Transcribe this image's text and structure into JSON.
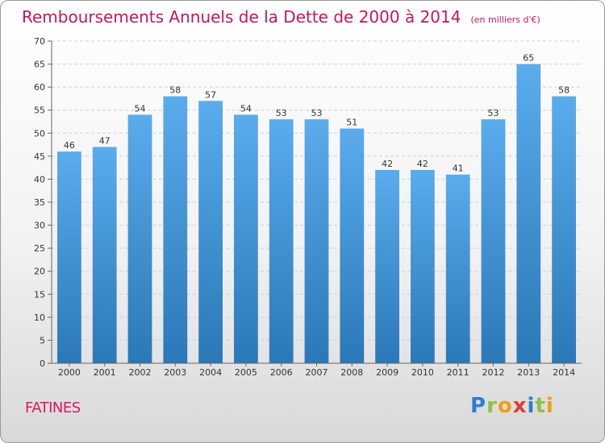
{
  "title": "Remboursements Annuels de la Dette de 2000 à 2014",
  "unit": "(en milliers d'€)",
  "place": "FATINES",
  "logo": {
    "letters": [
      {
        "ch": "P",
        "color": "#2e7dd1"
      },
      {
        "ch": "r",
        "color": "#8bc34a"
      },
      {
        "ch": "o",
        "color": "#f39c12"
      },
      {
        "ch": "x",
        "color": "#e53935"
      },
      {
        "ch": "i",
        "color": "#2e7dd1"
      },
      {
        "ch": "t",
        "color": "#8bc34a"
      },
      {
        "ch": "i",
        "color": "#f39c12"
      }
    ]
  },
  "colors": {
    "bar_top": "#5aacec",
    "bar_bottom": "#2a78b8",
    "title": "#c2185b"
  },
  "chart_data": {
    "type": "bar",
    "title": "Remboursements Annuels de la Dette de 2000 à 2014",
    "categories": [
      "2000",
      "2001",
      "2002",
      "2003",
      "2004",
      "2005",
      "2006",
      "2007",
      "2008",
      "2009",
      "2010",
      "2011",
      "2012",
      "2013",
      "2014"
    ],
    "values": [
      46,
      47,
      54,
      58,
      57,
      54,
      53,
      53,
      51,
      42,
      42,
      41,
      53,
      65,
      58
    ],
    "ylim": [
      0,
      70
    ],
    "yticks": [
      0,
      5,
      10,
      15,
      20,
      25,
      30,
      35,
      40,
      45,
      50,
      55,
      60,
      65,
      70
    ],
    "grid": true,
    "data_labels": true
  }
}
